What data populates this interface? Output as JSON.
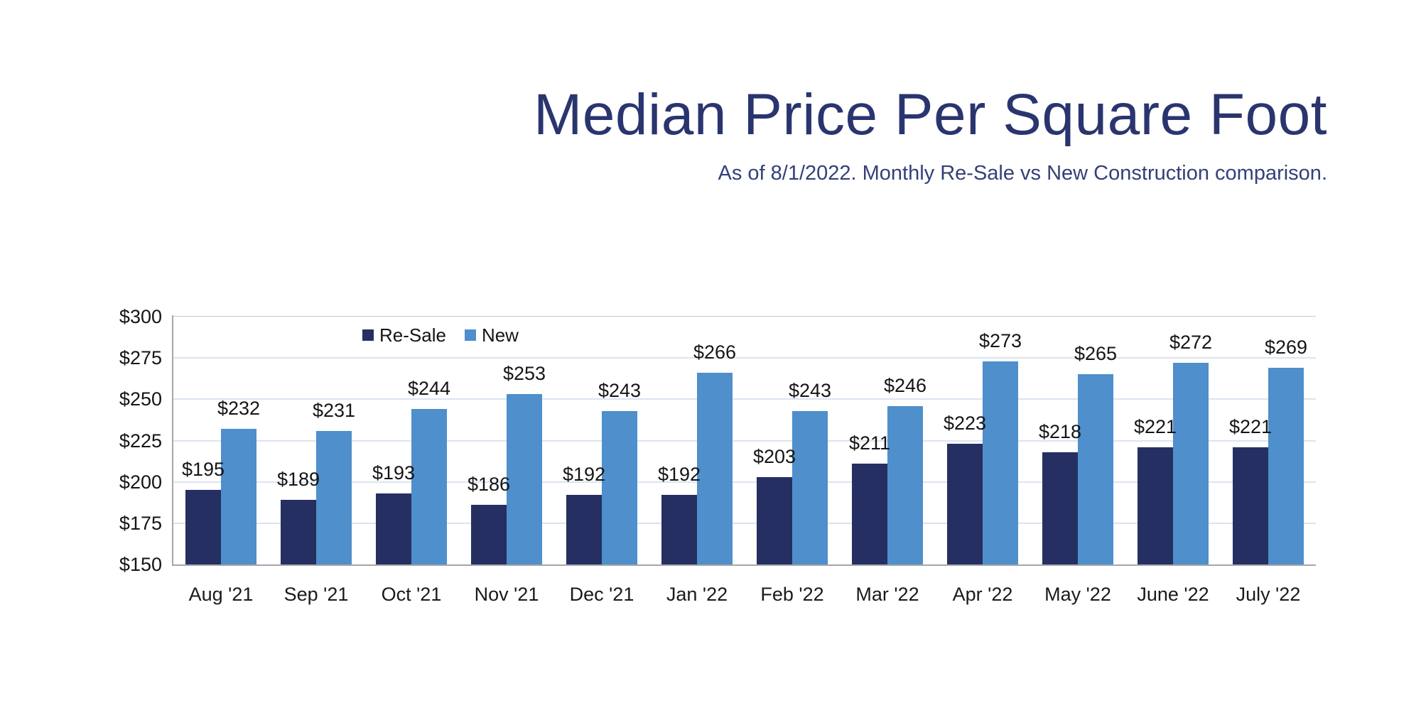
{
  "header": {
    "title": "Median Price Per Square Foot",
    "subtitle": "As of 8/1/2022. Monthly Re-Sale vs New Construction comparison."
  },
  "colors": {
    "title_text": "#2A356F",
    "subtitle_text": "#344079",
    "resale_bar": "#252F62",
    "new_bar": "#4E8FCC",
    "gridline": "#DCE4F1",
    "axis_line": "#A3A6AB",
    "plot_top_line": "#C3C9D4",
    "label_text": "#151515"
  },
  "chart_data": {
    "type": "bar",
    "title": "Median Price Per Square Foot",
    "subtitle": "As of 8/1/2022. Monthly Re-Sale vs New Construction comparison.",
    "categories": [
      "Aug '21",
      "Sep '21",
      "Oct '21",
      "Nov '21",
      "Dec '21",
      "Jan '22",
      "Feb '22",
      "Mar '22",
      "Apr '22",
      "May '22",
      "June '22",
      "July '22"
    ],
    "series": [
      {
        "name": "Re-Sale",
        "color": "#252F62",
        "values": [
          195,
          189,
          193,
          186,
          192,
          192,
          203,
          211,
          223,
          218,
          221,
          221
        ]
      },
      {
        "name": "New",
        "color": "#4E8FCC",
        "values": [
          232,
          231,
          244,
          253,
          243,
          266,
          243,
          246,
          273,
          265,
          272,
          269
        ]
      }
    ],
    "value_prefix": "$",
    "data_labels": true,
    "xlabel": "",
    "ylabel": "",
    "ylim": [
      150,
      300
    ],
    "y_ticks": [
      "$300",
      "$275",
      "$250",
      "$225",
      "$200",
      "$175",
      "$150"
    ],
    "y_tick_values": [
      300,
      275,
      250,
      225,
      200,
      175,
      150
    ],
    "grid": "horizontal",
    "legend_position": "inside-top-left"
  }
}
